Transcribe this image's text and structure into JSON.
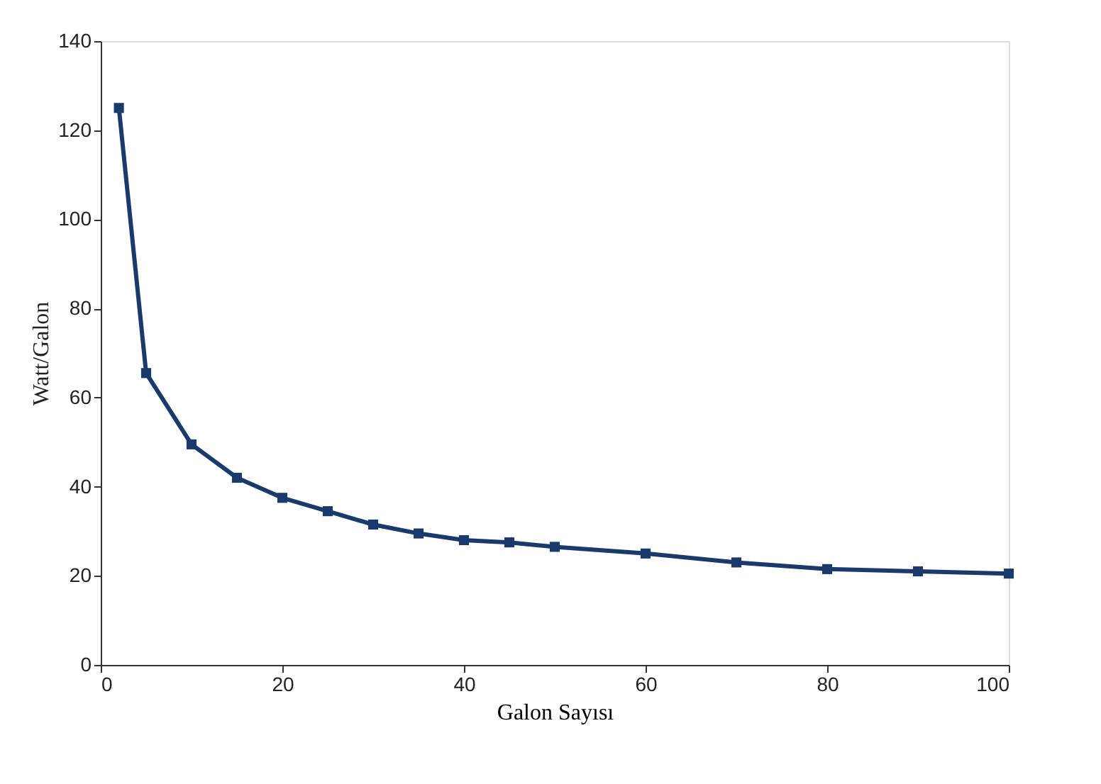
{
  "chart_data": {
    "type": "line",
    "xlabel": "Galon Sayısı",
    "ylabel": "Watt/Galon",
    "x": [
      2,
      5,
      10,
      15,
      20,
      25,
      30,
      35,
      40,
      45,
      50,
      60,
      70,
      80,
      90,
      100
    ],
    "series": [
      {
        "color": "#1a3a6b",
        "values": [
          125,
          65.5,
          49.5,
          42,
          37.5,
          34.5,
          31.5,
          29.5,
          28,
          27.5,
          26.5,
          25,
          23,
          21.5,
          21,
          20.5
        ]
      }
    ],
    "xlim": [
      0,
      100
    ],
    "xticks": [
      0,
      20,
      40,
      60,
      80,
      100
    ],
    "ylim": [
      0,
      140
    ],
    "yticks": [
      0,
      20,
      40,
      60,
      80,
      100,
      120,
      140
    ],
    "grid": false,
    "marker": "square",
    "line_style": "solid"
  }
}
